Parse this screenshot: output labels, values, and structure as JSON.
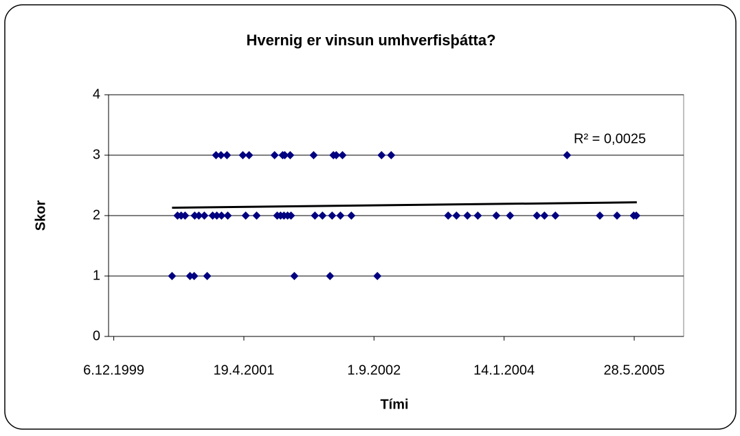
{
  "chart_data": {
    "type": "scatter",
    "title": "Hvernig er vinsun umhverfisþátta?",
    "xlabel": "Tími",
    "ylabel": "Skor",
    "xlim": [
      36480,
      38690
    ],
    "ylim": [
      0,
      4
    ],
    "xticks": [
      {
        "value": 36500,
        "label": "6.12.1999"
      },
      {
        "value": 37000,
        "label": "19.4.2001"
      },
      {
        "value": 37500,
        "label": "1.9.2002"
      },
      {
        "value": 38000,
        "label": "14.1.2004"
      },
      {
        "value": 38500,
        "label": "28.5.2005"
      }
    ],
    "yticks": [
      0,
      1,
      2,
      3,
      4
    ],
    "grid": true,
    "series": [
      {
        "color": "#000080",
        "x": [
          36724,
          36793,
          36809,
          36859,
          37194,
          37331,
          37513,
          36745,
          36759,
          36774,
          36811,
          36827,
          36848,
          36880,
          36896,
          36914,
          36938,
          37007,
          37049,
          37128,
          37141,
          37154,
          37168,
          37181,
          37273,
          37302,
          37339,
          37371,
          37413,
          37785,
          37817,
          37859,
          37899,
          37970,
          38023,
          38126,
          38155,
          38197,
          38368,
          38434,
          38498,
          38508,
          36893,
          36912,
          36935,
          36996,
          37020,
          37118,
          37149,
          37157,
          37178,
          37268,
          37344,
          37355,
          37379,
          37529,
          37566,
          38242
        ],
        "values": [
          1,
          1,
          1,
          1,
          1,
          1,
          1,
          2,
          2,
          2,
          2,
          2,
          2,
          2,
          2,
          2,
          2,
          2,
          2,
          2,
          2,
          2,
          2,
          2,
          2,
          2,
          2,
          2,
          2,
          2,
          2,
          2,
          2,
          2,
          2,
          2,
          2,
          2,
          2,
          2,
          2,
          2,
          3,
          3,
          3,
          3,
          3,
          3,
          3,
          3,
          3,
          3,
          3,
          3,
          3,
          3,
          3,
          3
        ]
      }
    ],
    "trendline": {
      "color": "#000000",
      "x": [
        36724,
        38510
      ],
      "values": [
        2.13,
        2.22
      ]
    },
    "annotation": "R² = 0,0025"
  }
}
